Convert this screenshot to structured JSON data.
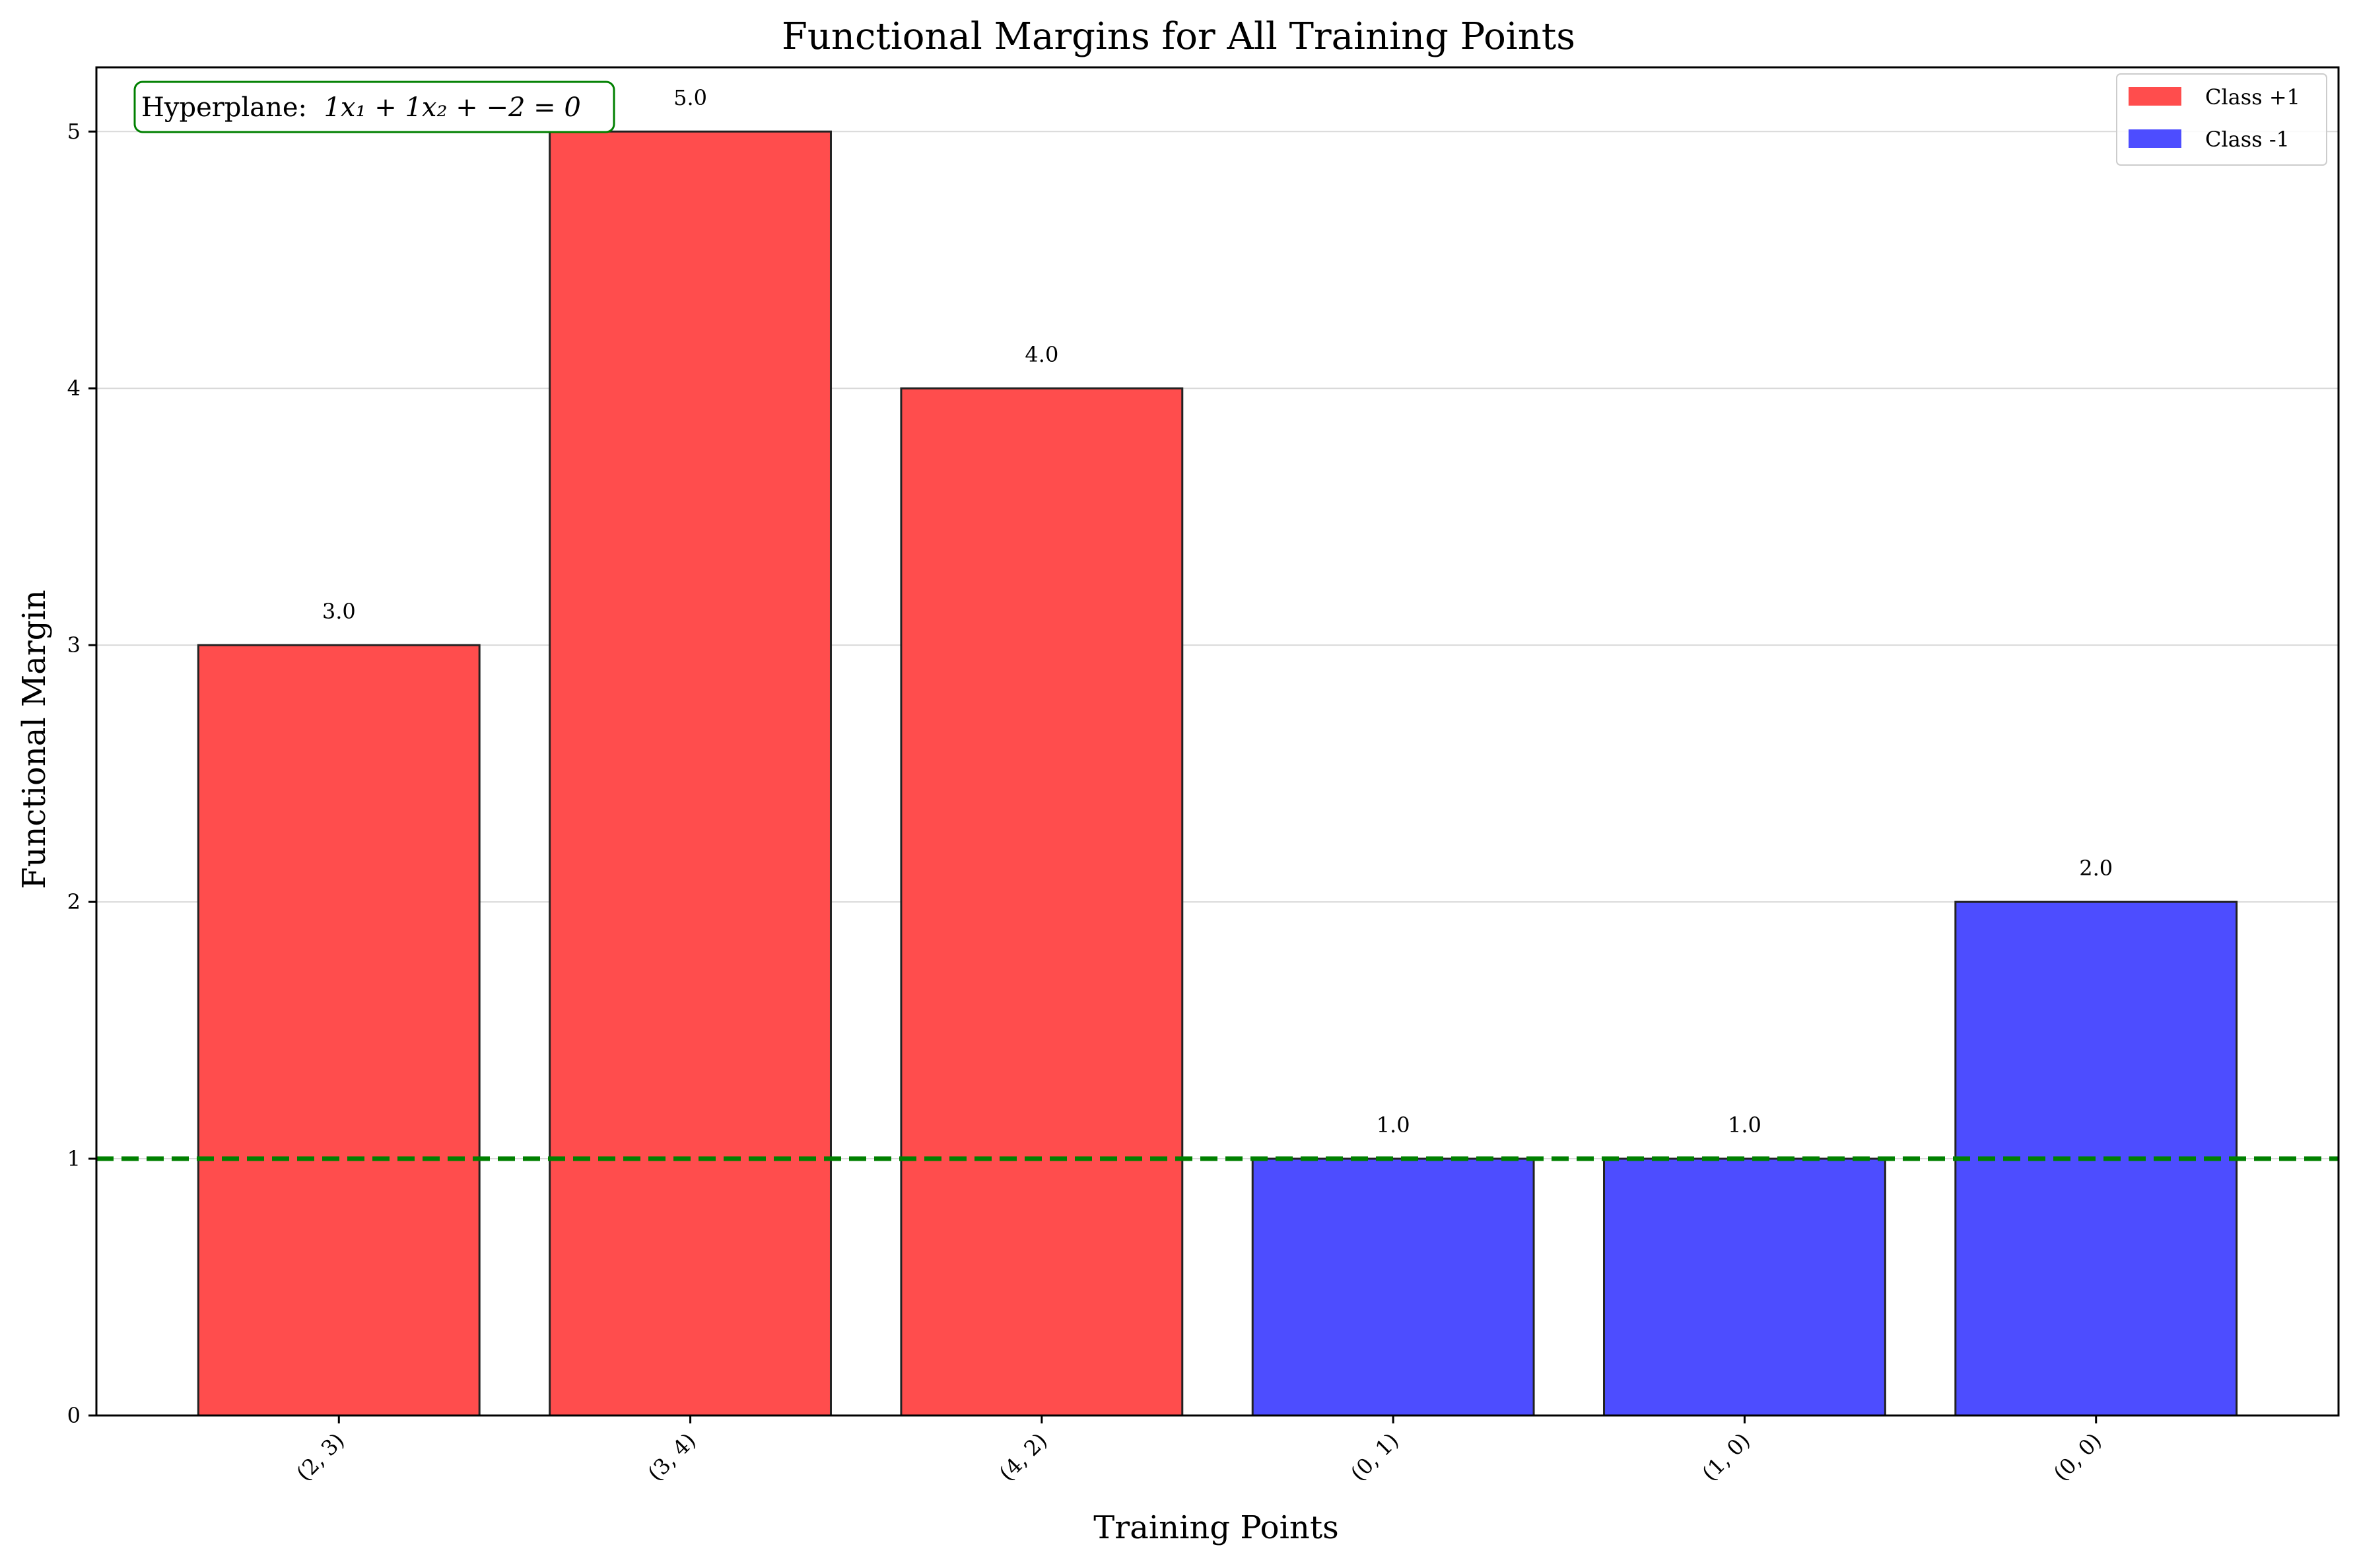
{
  "chart_data": {
    "type": "bar",
    "title": "Functional Margins for All Training Points",
    "xlabel": "Training Points",
    "ylabel": "Functional Margin",
    "categories": [
      "(2, 3)",
      "(3, 4)",
      "(4, 2)",
      "(0, 1)",
      "(1, 0)",
      "(0, 0)"
    ],
    "values": [
      3.0,
      5.0,
      4.0,
      1.0,
      1.0,
      2.0
    ],
    "value_labels": [
      "3.0",
      "5.0",
      "4.0",
      "1.0",
      "1.0",
      "2.0"
    ],
    "classes": [
      "Class +1",
      "Class +1",
      "Class +1",
      "Class -1",
      "Class -1",
      "Class -1"
    ],
    "ylim": [
      0,
      5.25
    ],
    "yticks": [
      0,
      1,
      2,
      3,
      4,
      5
    ],
    "grid": "horizontal",
    "reference_line": {
      "y": 1,
      "style": "dashed",
      "color": "#008000"
    },
    "legend": {
      "placement": "top-right",
      "entries": [
        {
          "label": "Class +1",
          "color": "#ff4d4d"
        },
        {
          "label": "Class -1",
          "color": "#4d4dff"
        }
      ]
    },
    "annotation": {
      "prefix": "Hyperplane: ",
      "equation": "1x₁ + 1x₂ + −2 = 0",
      "box_color": "#008000"
    }
  }
}
